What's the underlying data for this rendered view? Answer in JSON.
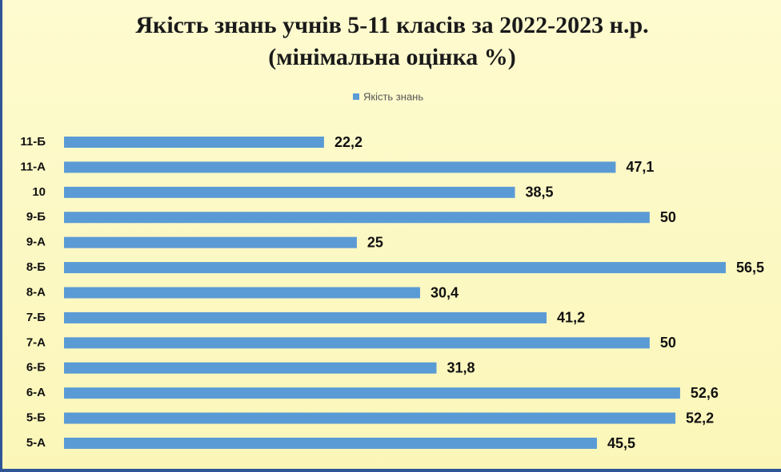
{
  "chart_data": {
    "type": "barh",
    "title": "Якість знань учнів 5-11 класів за 2022-2023 н.р.",
    "subtitle": "(мінімальна оцінка %)",
    "categories": [
      "5-А",
      "5-Б",
      "6-А",
      "6-Б",
      "7-А",
      "7-Б",
      "8-А",
      "8-Б",
      "9-А",
      "9-Б",
      "10",
      "11-А",
      "11-Б"
    ],
    "series": [
      {
        "name": "Якість знань",
        "color": "#5b9bd5",
        "values": [
          45.5,
          52.2,
          52.6,
          31.8,
          50,
          41.2,
          30.4,
          56.5,
          25,
          50,
          38.5,
          47.1,
          22.2
        ],
        "value_labels": [
          "45,5",
          "52,2",
          "52,6",
          "31,8",
          "50",
          "41,2",
          "30,4",
          "56,5",
          "25",
          "50",
          "38,5",
          "47,1",
          "22,2"
        ]
      }
    ],
    "legend": "top"
  }
}
